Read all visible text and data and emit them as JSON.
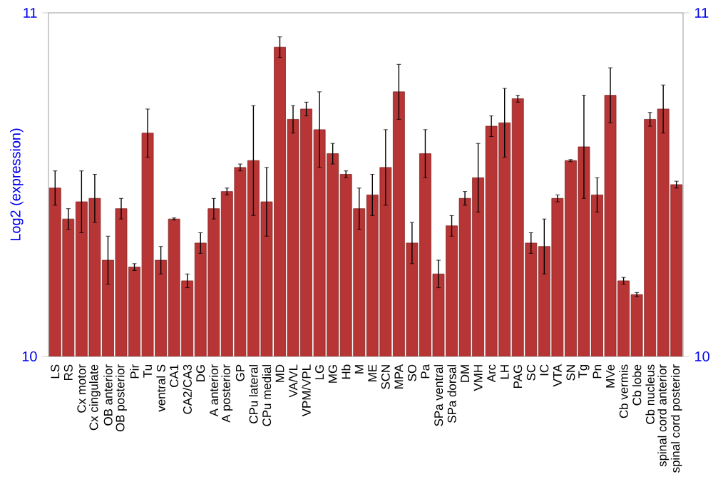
{
  "chart_data": {
    "type": "bar",
    "ylabel": "Log2 (expression)",
    "categories": [
      "LS",
      "RS",
      "Cx motor",
      "Cx cingulate",
      "OB anterior",
      "OB posterior",
      "Pir",
      "Tu",
      "ventral S",
      "CA1",
      "CA2/CA3",
      "DG",
      "A anterior",
      "A posterior",
      "GP",
      "CPu lateral",
      "CPu medial",
      "MD",
      "VA/VL",
      "VPM/VPL",
      "LG",
      "MG",
      "Hb",
      "M",
      "ME",
      "SCN",
      "MPA",
      "SO",
      "Pa",
      "SPa ventral",
      "SPa dorsal",
      "DM",
      "VMH",
      "Arc",
      "LH",
      "PAG",
      "SC",
      "IC",
      "VTA",
      "SN",
      "Tg",
      "Pn",
      "MVe",
      "Cb vermis",
      "Cb lobe",
      "Cb nucleus",
      "spinal cord anterior",
      "spinal cord posterior"
    ],
    "values": [
      10.49,
      10.4,
      10.45,
      10.46,
      10.28,
      10.43,
      10.26,
      10.65,
      10.28,
      10.4,
      10.22,
      10.33,
      10.43,
      10.48,
      10.55,
      10.57,
      10.45,
      10.9,
      10.69,
      10.72,
      10.66,
      10.59,
      10.53,
      10.43,
      10.47,
      10.55,
      10.77,
      10.33,
      10.59,
      10.24,
      10.38,
      10.46,
      10.52,
      10.67,
      10.68,
      10.75,
      10.33,
      10.32,
      10.46,
      10.57,
      10.61,
      10.47,
      10.76,
      10.22,
      10.18,
      10.69,
      10.72,
      10.5
    ],
    "errors": [
      0.05,
      0.03,
      0.09,
      0.07,
      0.07,
      0.03,
      0.01,
      0.07,
      0.04,
      0.003,
      0.02,
      0.03,
      0.03,
      0.01,
      0.01,
      0.16,
      0.1,
      0.03,
      0.04,
      0.02,
      0.11,
      0.03,
      0.01,
      0.06,
      0.06,
      0.11,
      0.08,
      0.06,
      0.07,
      0.04,
      0.03,
      0.02,
      0.1,
      0.03,
      0.1,
      0.01,
      0.03,
      0.08,
      0.01,
      0.003,
      0.15,
      0.05,
      0.08,
      0.01,
      0.006,
      0.02,
      0.07,
      0.01
    ],
    "color": "#b83535",
    "ylim": [
      10,
      11
    ],
    "yticks": [
      10,
      11
    ],
    "y2lim": [
      10,
      11
    ],
    "y2ticks": [
      10,
      11
    ]
  }
}
